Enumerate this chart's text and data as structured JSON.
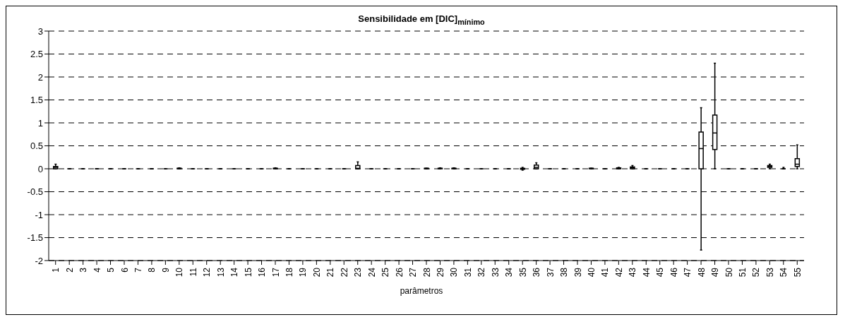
{
  "chart_data": {
    "type": "box",
    "title": "Sensibilidade em [DIC]$_{mínimo}$",
    "xlabel": "parâmetros",
    "categories": [
      "1",
      "2",
      "3",
      "4",
      "5",
      "6",
      "7",
      "8",
      "9",
      "10",
      "11",
      "12",
      "13",
      "14",
      "15",
      "16",
      "17",
      "18",
      "19",
      "20",
      "21",
      "22",
      "23",
      "24",
      "25",
      "26",
      "27",
      "28",
      "29",
      "30",
      "31",
      "32",
      "33",
      "34",
      "35",
      "36",
      "37",
      "38",
      "39",
      "40",
      "41",
      "42",
      "43",
      "44",
      "45",
      "46",
      "47",
      "48",
      "49",
      "50",
      "51",
      "52",
      "53",
      "54",
      "55"
    ],
    "boxes": [
      {
        "low": 0,
        "q1": 0,
        "median": 0.03,
        "q3": 0.05,
        "high": 0.1
      },
      {
        "low": 0,
        "q1": 0,
        "median": 0,
        "q3": 0,
        "high": 0
      },
      {
        "low": 0,
        "q1": 0,
        "median": 0,
        "q3": 0,
        "high": 0
      },
      {
        "low": 0,
        "q1": 0,
        "median": 0,
        "q3": 0,
        "high": 0
      },
      {
        "low": 0,
        "q1": 0,
        "median": 0,
        "q3": 0,
        "high": 0
      },
      {
        "low": 0,
        "q1": 0,
        "median": 0,
        "q3": 0,
        "high": 0
      },
      {
        "low": 0,
        "q1": 0,
        "median": 0,
        "q3": 0,
        "high": 0
      },
      {
        "low": 0,
        "q1": 0,
        "median": 0,
        "q3": 0,
        "high": 0
      },
      {
        "low": 0,
        "q1": 0,
        "median": 0,
        "q3": 0,
        "high": 0
      },
      {
        "low": 0,
        "q1": 0,
        "median": 0.01,
        "q3": 0.01,
        "high": 0.02
      },
      {
        "low": 0,
        "q1": 0,
        "median": 0,
        "q3": 0,
        "high": 0
      },
      {
        "low": 0,
        "q1": 0,
        "median": 0,
        "q3": 0,
        "high": 0
      },
      {
        "low": 0,
        "q1": 0,
        "median": 0,
        "q3": 0,
        "high": 0
      },
      {
        "low": 0,
        "q1": 0,
        "median": 0,
        "q3": 0,
        "high": 0
      },
      {
        "low": 0,
        "q1": 0,
        "median": 0,
        "q3": 0,
        "high": 0
      },
      {
        "low": 0,
        "q1": 0,
        "median": 0,
        "q3": 0,
        "high": 0
      },
      {
        "low": 0,
        "q1": 0,
        "median": 0.01,
        "q3": 0.01,
        "high": 0.02
      },
      {
        "low": 0,
        "q1": 0,
        "median": 0,
        "q3": 0,
        "high": 0
      },
      {
        "low": 0,
        "q1": 0,
        "median": 0,
        "q3": 0,
        "high": 0
      },
      {
        "low": 0,
        "q1": 0,
        "median": 0,
        "q3": 0,
        "high": 0
      },
      {
        "low": 0,
        "q1": 0,
        "median": 0,
        "q3": 0,
        "high": 0
      },
      {
        "low": 0,
        "q1": 0,
        "median": 0,
        "q3": 0,
        "high": 0
      },
      {
        "low": 0,
        "q1": 0,
        "median": 0.01,
        "q3": 0.07,
        "high": 0.15
      },
      {
        "low": 0,
        "q1": 0,
        "median": 0,
        "q3": 0,
        "high": 0
      },
      {
        "low": 0,
        "q1": 0,
        "median": 0,
        "q3": 0,
        "high": 0
      },
      {
        "low": 0,
        "q1": 0,
        "median": 0,
        "q3": 0,
        "high": 0
      },
      {
        "low": 0,
        "q1": 0,
        "median": 0,
        "q3": 0,
        "high": 0
      },
      {
        "low": 0,
        "q1": 0,
        "median": 0.01,
        "q3": 0.01,
        "high": 0.01
      },
      {
        "low": 0,
        "q1": 0,
        "median": 0.01,
        "q3": 0.01,
        "high": 0.02
      },
      {
        "low": 0,
        "q1": 0,
        "median": 0.01,
        "q3": 0.01,
        "high": 0.02
      },
      {
        "low": 0,
        "q1": 0,
        "median": 0,
        "q3": 0,
        "high": 0
      },
      {
        "low": 0,
        "q1": 0,
        "median": 0,
        "q3": 0,
        "high": 0
      },
      {
        "low": 0,
        "q1": 0,
        "median": 0,
        "q3": 0,
        "high": 0
      },
      {
        "low": 0,
        "q1": 0,
        "median": 0,
        "q3": 0,
        "high": 0
      },
      {
        "low": -0.03,
        "q1": -0.01,
        "median": 0,
        "q3": 0.01,
        "high": 0.03
      },
      {
        "low": 0,
        "q1": 0,
        "median": 0.03,
        "q3": 0.08,
        "high": 0.13
      },
      {
        "low": 0,
        "q1": 0,
        "median": 0,
        "q3": 0,
        "high": 0
      },
      {
        "low": 0,
        "q1": 0,
        "median": 0,
        "q3": 0,
        "high": 0
      },
      {
        "low": 0,
        "q1": 0,
        "median": 0,
        "q3": 0,
        "high": 0
      },
      {
        "low": 0,
        "q1": 0,
        "median": 0.01,
        "q3": 0.01,
        "high": 0.01
      },
      {
        "low": 0,
        "q1": 0,
        "median": 0,
        "q3": 0,
        "high": 0
      },
      {
        "low": 0,
        "q1": 0,
        "median": 0.01,
        "q3": 0.02,
        "high": 0.03
      },
      {
        "low": 0,
        "q1": 0,
        "median": 0.02,
        "q3": 0.04,
        "high": 0.07
      },
      {
        "low": 0,
        "q1": 0,
        "median": 0,
        "q3": 0,
        "high": 0
      },
      {
        "low": 0,
        "q1": 0,
        "median": 0,
        "q3": 0,
        "high": 0
      },
      {
        "low": 0,
        "q1": 0,
        "median": 0,
        "q3": 0,
        "high": 0
      },
      {
        "low": 0,
        "q1": 0,
        "median": 0,
        "q3": 0,
        "high": 0
      },
      {
        "low": -1.77,
        "q1": 0,
        "median": 0.44,
        "q3": 0.8,
        "high": 1.33
      },
      {
        "low": 0,
        "q1": 0.42,
        "median": 0.78,
        "q3": 1.17,
        "high": 2.3
      },
      {
        "low": 0,
        "q1": 0,
        "median": 0,
        "q3": 0,
        "high": 0
      },
      {
        "low": 0,
        "q1": 0,
        "median": 0,
        "q3": 0,
        "high": 0
      },
      {
        "low": 0,
        "q1": 0,
        "median": 0,
        "q3": 0,
        "high": 0
      },
      {
        "low": 0,
        "q1": 0.03,
        "median": 0.05,
        "q3": 0.07,
        "high": 0.1
      },
      {
        "low": 0,
        "q1": 0,
        "median": 0,
        "q3": 0,
        "high": 0.03
      },
      {
        "low": 0,
        "q1": 0.05,
        "median": 0.1,
        "q3": 0.22,
        "high": 0.52
      }
    ],
    "ylim": [
      -2,
      3
    ],
    "yticks": [
      -2,
      -1.5,
      -1,
      -0.5,
      0,
      0.5,
      1,
      1.5,
      2,
      2.5,
      3
    ],
    "grid": "y",
    "color": "#000000"
  }
}
